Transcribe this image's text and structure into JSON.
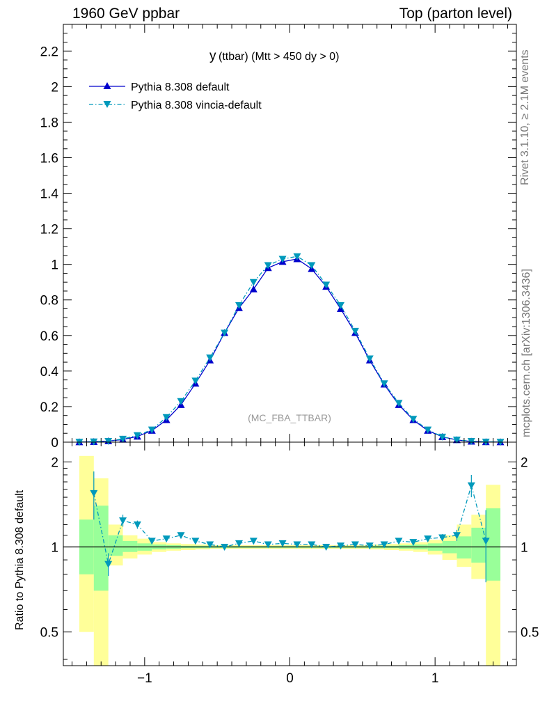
{
  "header": {
    "left": "1960 GeV ppbar",
    "right": "Top (parton level)"
  },
  "side": {
    "rivet": "Rivet 3.1.10, ≥ 2.1M events",
    "mcplots": "mcplots.cern.ch [arXiv:1306.3436]"
  },
  "chart_data": {
    "type": "line",
    "title_main": "y",
    "title_rest": " (ttbar) (Mtt > 450 dy > 0)",
    "analysis_label": "(MC_FBA_TTBAR)",
    "xlim": [
      -1.56,
      1.56
    ],
    "ylim": [
      0,
      2.35
    ],
    "x_ticks": [
      -1,
      0,
      1
    ],
    "x_tick_labels": [
      "−1",
      "0",
      "1"
    ],
    "y_ticks": [
      0,
      0.2,
      0.4,
      0.6,
      0.8,
      1,
      1.2,
      1.4,
      1.6,
      1.8,
      2,
      2.2
    ],
    "y_tick_labels": [
      "0",
      "0.2",
      "0.4",
      "0.6",
      "0.8",
      "1",
      "1.2",
      "1.4",
      "1.6",
      "1.8",
      "2",
      "2.2"
    ],
    "x": [
      -1.45,
      -1.35,
      -1.25,
      -1.15,
      -1.05,
      -0.95,
      -0.85,
      -0.75,
      -0.65,
      -0.55,
      -0.45,
      -0.35,
      -0.25,
      -0.15,
      -0.05,
      0.05,
      0.15,
      0.25,
      0.35,
      0.45,
      0.55,
      0.65,
      0.75,
      0.85,
      0.95,
      1.05,
      1.15,
      1.25,
      1.35,
      1.45
    ],
    "series": [
      {
        "name": "Pythia 8.308 default",
        "color": "#0000cc",
        "marker": "triangle-up",
        "values": [
          0.0005,
          0.002,
          0.006,
          0.015,
          0.032,
          0.065,
          0.125,
          0.21,
          0.33,
          0.46,
          0.615,
          0.755,
          0.86,
          0.98,
          1.015,
          1.03,
          0.975,
          0.875,
          0.75,
          0.615,
          0.46,
          0.325,
          0.21,
          0.125,
          0.065,
          0.03,
          0.012,
          0.004,
          0.001,
          0.0005
        ]
      },
      {
        "name": "Pythia 8.308 vincia-default",
        "color": "#0099bb",
        "marker": "triangle-down",
        "values": [
          0.001,
          0.003,
          0.006,
          0.018,
          0.038,
          0.07,
          0.14,
          0.23,
          0.345,
          0.475,
          0.615,
          0.77,
          0.9,
          0.995,
          1.03,
          1.045,
          0.995,
          0.885,
          0.77,
          0.625,
          0.47,
          0.33,
          0.22,
          0.13,
          0.07,
          0.03,
          0.013,
          0.006,
          0.002,
          0.001
        ]
      }
    ],
    "ratio": {
      "ylabel": "Ratio to Pythia 8.308 default",
      "ylim": [
        0.38,
        2.35
      ],
      "log": true,
      "y_ticks": [
        0.5,
        1,
        2
      ],
      "y_tick_labels": [
        "0.5",
        "1",
        "2"
      ],
      "x_ticks": [
        -1,
        0,
        1
      ],
      "x_tick_labels": [
        "−1",
        "0",
        "1"
      ],
      "bands": [
        {
          "x": [
            -1.45,
            -1.35
          ],
          "yellow": [
            0.5,
            2.1
          ],
          "green": [
            0.8,
            1.25
          ]
        },
        {
          "x": [
            -1.35,
            -1.25
          ],
          "yellow": [
            0.35,
            1.75
          ],
          "green": [
            0.7,
            1.4
          ]
        },
        {
          "x": [
            -1.25,
            -1.15
          ],
          "yellow": [
            0.86,
            1.2
          ],
          "green": [
            0.93,
            1.1
          ]
        },
        {
          "x": [
            -1.15,
            -1.05
          ],
          "yellow": [
            0.91,
            1.1
          ],
          "green": [
            0.96,
            1.05
          ]
        },
        {
          "x": [
            -1.05,
            -0.95
          ],
          "yellow": [
            0.94,
            1.07
          ],
          "green": [
            0.97,
            1.03
          ]
        },
        {
          "x": [
            -0.95,
            -0.85
          ],
          "yellow": [
            0.96,
            1.04
          ],
          "green": [
            0.98,
            1.02
          ]
        },
        {
          "x": [
            -0.85,
            -0.75
          ],
          "yellow": [
            0.97,
            1.03
          ],
          "green": [
            0.985,
            1.015
          ]
        },
        {
          "x": [
            -0.75,
            -0.65
          ],
          "yellow": [
            0.975,
            1.025
          ],
          "green": [
            0.99,
            1.01
          ]
        },
        {
          "x": [
            -0.65,
            -0.55
          ],
          "yellow": [
            0.98,
            1.02
          ],
          "green": [
            0.99,
            1.01
          ]
        },
        {
          "x": [
            -0.55,
            0.55
          ],
          "yellow": [
            0.985,
            1.015
          ],
          "green": [
            0.993,
            1.007
          ]
        },
        {
          "x": [
            0.55,
            0.65
          ],
          "yellow": [
            0.98,
            1.02
          ],
          "green": [
            0.99,
            1.01
          ]
        },
        {
          "x": [
            0.65,
            0.75
          ],
          "yellow": [
            0.975,
            1.025
          ],
          "green": [
            0.99,
            1.01
          ]
        },
        {
          "x": [
            0.75,
            0.85
          ],
          "yellow": [
            0.97,
            1.03
          ],
          "green": [
            0.985,
            1.015
          ]
        },
        {
          "x": [
            0.85,
            0.95
          ],
          "yellow": [
            0.96,
            1.04
          ],
          "green": [
            0.98,
            1.02
          ]
        },
        {
          "x": [
            0.95,
            1.05
          ],
          "yellow": [
            0.94,
            1.06
          ],
          "green": [
            0.97,
            1.03
          ]
        },
        {
          "x": [
            1.05,
            1.15
          ],
          "yellow": [
            0.9,
            1.1
          ],
          "green": [
            0.95,
            1.05
          ]
        },
        {
          "x": [
            1.15,
            1.25
          ],
          "yellow": [
            0.85,
            1.2
          ],
          "green": [
            0.91,
            1.09
          ]
        },
        {
          "x": [
            1.25,
            1.35
          ],
          "yellow": [
            0.77,
            1.3
          ],
          "green": [
            0.88,
            1.17
          ]
        },
        {
          "x": [
            1.35,
            1.45
          ],
          "yellow": [
            0.37,
            1.66
          ],
          "green": [
            0.76,
            1.37
          ]
        }
      ],
      "vincia_ratio": [
        null,
        1.55,
        0.87,
        1.24,
        1.2,
        1.05,
        1.07,
        1.1,
        1.05,
        1.02,
        1.0,
        1.03,
        1.05,
        1.02,
        1.03,
        1.02,
        1.02,
        1.0,
        1.01,
        1.02,
        1.01,
        1.02,
        1.05,
        1.04,
        1.07,
        1.08,
        1.1,
        1.65,
        1.05,
        null
      ],
      "vincia_err": [
        0,
        0.3,
        0.08,
        0.06,
        0.04,
        0.02,
        0.02,
        0.015,
        0.01,
        0.01,
        0.01,
        0.01,
        0.01,
        0.01,
        0.01,
        0.01,
        0.01,
        0.01,
        0.01,
        0.01,
        0.01,
        0.01,
        0.015,
        0.02,
        0.02,
        0.03,
        0.05,
        0.15,
        0.3,
        0
      ]
    }
  }
}
